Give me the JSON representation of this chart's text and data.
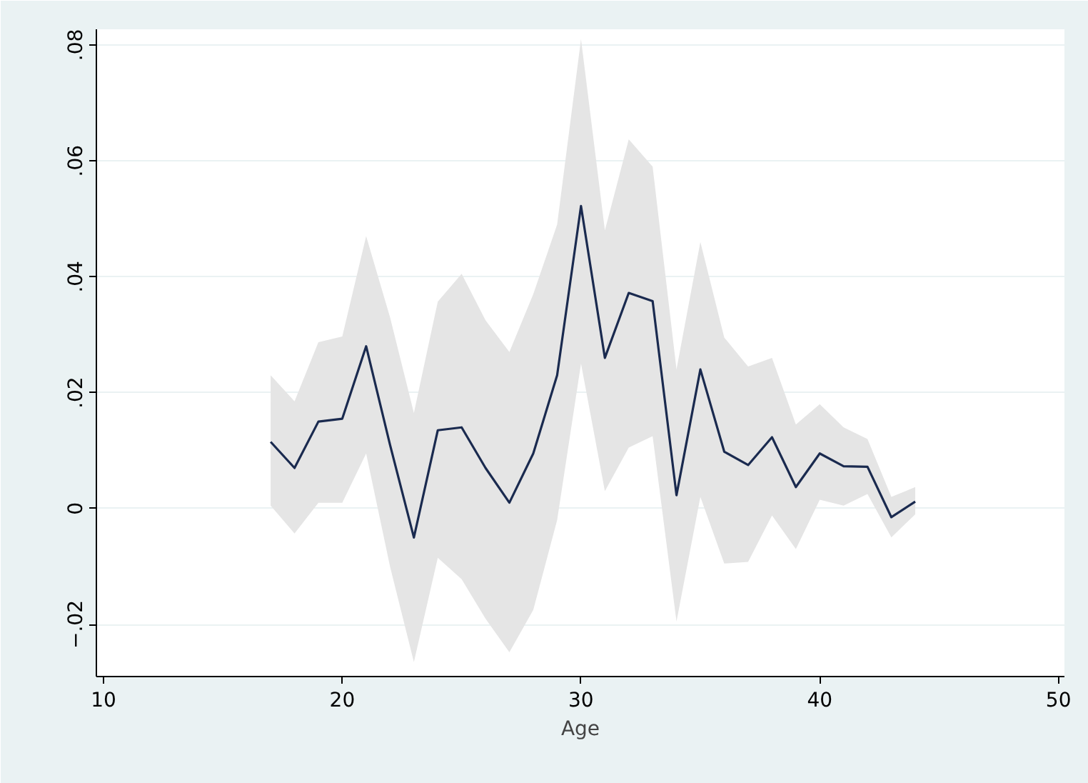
{
  "chart_data": {
    "type": "line",
    "xlabel": "Age",
    "x": [
      17,
      18,
      19,
      20,
      21,
      22,
      23,
      24,
      25,
      26,
      27,
      28,
      29,
      30,
      31,
      32,
      33,
      34,
      35,
      36,
      37,
      38,
      39,
      40,
      41,
      42,
      43,
      44
    ],
    "series": [
      {
        "color": "#1a2a4f",
        "values": [
          0.0115,
          0.007,
          0.015,
          0.0155,
          0.028,
          0.011,
          -0.005,
          0.0135,
          0.014,
          0.007,
          0.001,
          0.0095,
          0.023,
          0.0522,
          0.026,
          0.0372,
          0.0358,
          0.0023,
          0.024,
          0.0098,
          0.0075,
          0.0123,
          0.0037,
          0.0095,
          0.0073,
          0.0072,
          -0.0015,
          0.0012
        ],
        "upper": [
          0.023,
          0.0185,
          0.0287,
          0.0297,
          0.047,
          0.033,
          0.0165,
          0.0357,
          0.0405,
          0.0325,
          0.027,
          0.037,
          0.049,
          0.081,
          0.048,
          0.0637,
          0.059,
          0.024,
          0.046,
          0.0295,
          0.0245,
          0.026,
          0.0145,
          0.018,
          0.014,
          0.012,
          0.002,
          0.0037
        ],
        "lower": [
          0.0005,
          -0.0043,
          0.001,
          0.001,
          0.0095,
          -0.01,
          -0.0265,
          -0.0085,
          -0.0122,
          -0.019,
          -0.0248,
          -0.0175,
          -0.002,
          0.025,
          0.003,
          0.0105,
          0.0125,
          -0.0195,
          0.002,
          -0.0095,
          -0.0092,
          -0.0012,
          -0.007,
          0.0015,
          0.0005,
          0.0025,
          -0.005,
          -0.001
        ]
      }
    ],
    "xlim": [
      9.7,
      50.25
    ],
    "xticks": [
      10,
      20,
      30,
      40,
      50
    ],
    "ylim": [
      -0.029,
      0.0827
    ],
    "yticks": [
      {
        "value": -0.02,
        "label": "−.02"
      },
      {
        "value": 0,
        "label": "0"
      },
      {
        "value": 0.02,
        "label": ".02"
      },
      {
        "value": 0.04,
        "label": ".04"
      },
      {
        "value": 0.06,
        "label": ".06"
      },
      {
        "value": 0.08,
        "label": ".08"
      }
    ],
    "grid": "y",
    "line_style": "solid",
    "marker": "none"
  }
}
